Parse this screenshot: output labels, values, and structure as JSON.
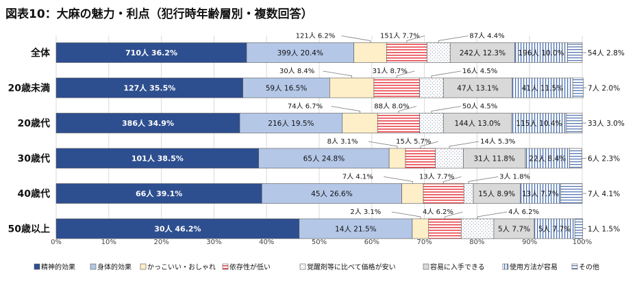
{
  "chart_data": {
    "type": "bar",
    "orientation": "horizontal",
    "stacked": "percent",
    "title": "図表10：大麻の魅力・利点（犯行時年齢層別・複数回答）",
    "xlim": [
      0,
      100
    ],
    "x_ticks": [
      "0%",
      "10%",
      "20%",
      "30%",
      "40%",
      "50%",
      "60%",
      "70%",
      "80%",
      "90%",
      "100%"
    ],
    "grid": true,
    "legend_position": "bottom",
    "categories": [
      "全体",
      "20歳未満",
      "20歳代",
      "30歳代",
      "40歳代",
      "50歳以上"
    ],
    "series": [
      {
        "name": "精神的効果",
        "fill": "#2e4f8f",
        "pattern": "solid",
        "values": [
          36.2,
          35.5,
          34.9,
          38.5,
          39.1,
          46.2
        ],
        "labels": [
          "710人 36.2%",
          "127人 35.5%",
          "386人 34.9%",
          "101人 38.5%",
          "66人 39.1%",
          "30人 46.2%"
        ]
      },
      {
        "name": "身体的効果",
        "fill": "#b4c7e7",
        "pattern": "solid",
        "values": [
          20.4,
          16.5,
          19.5,
          24.8,
          26.6,
          21.5
        ],
        "labels": [
          "399人 20.4%",
          "59人 16.5%",
          "216人 19.5%",
          "65人 24.8%",
          "45人 26.6%",
          "14人 21.5%"
        ]
      },
      {
        "name": "かっこいい・おしゃれ",
        "fill": "#ffefc8",
        "pattern": "solid",
        "values": [
          6.2,
          8.4,
          6.7,
          3.1,
          4.1,
          3.1
        ],
        "labels": [
          "121人 6.2%",
          "30人 8.4%",
          "74人 6.7%",
          "8人 3.1%",
          "7人 4.1%",
          "2人 3.1%"
        ]
      },
      {
        "name": "依存性が低い",
        "fill": "#e8424a",
        "pattern": "hlines",
        "values": [
          7.7,
          8.7,
          8.0,
          5.7,
          7.7,
          6.2
        ],
        "labels": [
          "151人 7.7%",
          "31人 8.7%",
          "88人 8.0%",
          "15人 5.7%",
          "13人 7.7%",
          "4人 6.2%"
        ]
      },
      {
        "name": "覚醒剤等に比べて価格が安い",
        "fill": "#9aa6b8",
        "pattern": "dots",
        "values": [
          4.4,
          4.5,
          4.5,
          5.3,
          1.8,
          6.2
        ],
        "labels": [
          "87人 4.4%",
          "16人 4.5%",
          "50人 4.5%",
          "14人 5.3%",
          "3人 1.8%",
          "4人 6.2%"
        ]
      },
      {
        "name": "容易に入手できる",
        "fill": "#d9d9d9",
        "pattern": "solid",
        "values": [
          12.3,
          13.1,
          13.0,
          11.8,
          8.9,
          7.7
        ],
        "labels": [
          "242人 12.3%",
          "47人 13.1%",
          "144人 13.0%",
          "31人 11.8%",
          "15人 8.9%",
          "5人 7.7%"
        ]
      },
      {
        "name": "使用方法が容易",
        "fill": "#4a6fb0",
        "pattern": "vlines",
        "values": [
          10.0,
          11.5,
          10.4,
          8.4,
          7.7,
          7.7
        ],
        "labels": [
          "196人 10.0%",
          "41人 11.5%",
          "115人 10.4%",
          "22人 8.4%",
          "13人 7.7%",
          "5人 7.7%"
        ]
      },
      {
        "name": "その他",
        "fill": "#4a6fb0",
        "pattern": "hlines-light",
        "values": [
          2.8,
          2.0,
          3.0,
          2.3,
          4.1,
          1.5
        ],
        "labels": [
          "54人 2.8%",
          "7人 2.0%",
          "33人 3.0%",
          "6人 2.3%",
          "7人 4.1%",
          "1人 1.5%"
        ]
      }
    ]
  }
}
